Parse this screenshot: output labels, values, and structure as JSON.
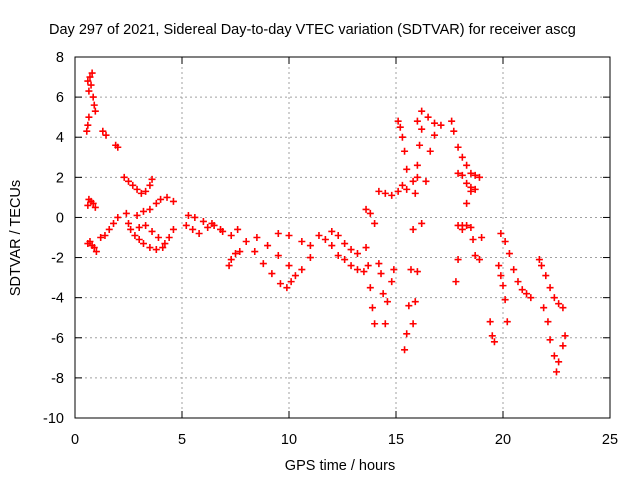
{
  "chart_data": {
    "type": "scatter",
    "title": "Day 297 of 2021, Sidereal Day-to-day VTEC variation (SDTVAR) for receiver ascg",
    "xlabel": "GPS time / hours",
    "ylabel": "SDTVAR / TECUs",
    "xlim": [
      0,
      25
    ],
    "ylim": [
      -10,
      8
    ],
    "xticks": [
      0,
      5,
      10,
      15,
      20,
      25
    ],
    "xtick_labels": [
      "0",
      "5",
      "10",
      "15",
      "20",
      "25"
    ],
    "yticks": [
      -10,
      -8,
      -6,
      -4,
      -2,
      0,
      2,
      4,
      6,
      8
    ],
    "ytick_labels": [
      "-10",
      "-8",
      "-6",
      "-4",
      "-2",
      "0",
      "2",
      "4",
      "6",
      "8"
    ],
    "grid": true,
    "marker": "+",
    "color": "#ff0000",
    "series": [
      {
        "name": "SDTVAR",
        "points": [
          [
            0.55,
            4.3
          ],
          [
            0.6,
            4.6
          ],
          [
            0.65,
            5.0
          ],
          [
            0.6,
            6.8
          ],
          [
            0.65,
            6.3
          ],
          [
            0.7,
            7.0
          ],
          [
            0.75,
            6.6
          ],
          [
            0.8,
            7.2
          ],
          [
            0.85,
            6.0
          ],
          [
            0.9,
            5.6
          ],
          [
            0.95,
            5.3
          ],
          [
            0.6,
            0.6
          ],
          [
            0.65,
            0.9
          ],
          [
            0.75,
            0.8
          ],
          [
            0.85,
            0.7
          ],
          [
            0.95,
            0.5
          ],
          [
            0.6,
            -1.3
          ],
          [
            0.7,
            -1.2
          ],
          [
            0.8,
            -1.4
          ],
          [
            0.9,
            -1.5
          ],
          [
            1.0,
            -1.7
          ],
          [
            1.3,
            4.3
          ],
          [
            1.45,
            4.1
          ],
          [
            1.9,
            3.6
          ],
          [
            2.0,
            3.5
          ],
          [
            1.2,
            -1.0
          ],
          [
            1.4,
            -0.9
          ],
          [
            1.6,
            -0.6
          ],
          [
            1.8,
            -0.3
          ],
          [
            2.0,
            0.0
          ],
          [
            2.3,
            2.0
          ],
          [
            2.5,
            1.8
          ],
          [
            2.7,
            1.6
          ],
          [
            2.9,
            1.4
          ],
          [
            3.1,
            1.2
          ],
          [
            3.3,
            1.3
          ],
          [
            3.5,
            1.6
          ],
          [
            3.6,
            1.9
          ],
          [
            2.4,
            0.2
          ],
          [
            2.5,
            -0.3
          ],
          [
            2.6,
            -0.6
          ],
          [
            2.8,
            -0.9
          ],
          [
            3.0,
            -1.1
          ],
          [
            3.2,
            -1.3
          ],
          [
            3.5,
            -1.5
          ],
          [
            3.8,
            -1.6
          ],
          [
            4.1,
            -1.5
          ],
          [
            4.4,
            -1.0
          ],
          [
            4.6,
            -0.6
          ],
          [
            2.9,
            0.1
          ],
          [
            3.2,
            0.3
          ],
          [
            3.5,
            0.4
          ],
          [
            3.8,
            0.7
          ],
          [
            4.0,
            0.9
          ],
          [
            4.3,
            1.0
          ],
          [
            4.6,
            0.8
          ],
          [
            3.0,
            -0.5
          ],
          [
            3.3,
            -0.4
          ],
          [
            3.6,
            -0.7
          ],
          [
            3.9,
            -1.0
          ],
          [
            4.2,
            -1.3
          ],
          [
            5.2,
            -0.4
          ],
          [
            5.5,
            -0.6
          ],
          [
            5.8,
            -0.8
          ],
          [
            6.2,
            -0.5
          ],
          [
            6.5,
            -0.4
          ],
          [
            6.9,
            -0.7
          ],
          [
            7.3,
            -0.9
          ],
          [
            7.6,
            -0.6
          ],
          [
            5.3,
            0.1
          ],
          [
            5.6,
            0.0
          ],
          [
            6.0,
            -0.2
          ],
          [
            6.4,
            -0.3
          ],
          [
            6.8,
            -0.6
          ],
          [
            7.3,
            -2.1
          ],
          [
            7.5,
            -1.8
          ],
          [
            7.7,
            -1.7
          ],
          [
            7.2,
            -2.4
          ],
          [
            8.0,
            -1.2
          ],
          [
            8.4,
            -1.7
          ],
          [
            8.8,
            -2.3
          ],
          [
            9.2,
            -2.8
          ],
          [
            9.6,
            -3.3
          ],
          [
            9.9,
            -3.5
          ],
          [
            10.1,
            -3.2
          ],
          [
            8.5,
            -1.0
          ],
          [
            9.0,
            -1.4
          ],
          [
            9.5,
            -1.9
          ],
          [
            10.0,
            -2.4
          ],
          [
            10.3,
            -2.9
          ],
          [
            10.6,
            -2.6
          ],
          [
            11.0,
            -2.0
          ],
          [
            9.5,
            -0.8
          ],
          [
            10.0,
            -0.9
          ],
          [
            10.6,
            -1.2
          ],
          [
            11.0,
            -1.4
          ],
          [
            11.4,
            -0.9
          ],
          [
            11.7,
            -1.1
          ],
          [
            12.0,
            -1.4
          ],
          [
            12.3,
            -1.9
          ],
          [
            12.6,
            -2.1
          ],
          [
            12.9,
            -2.4
          ],
          [
            13.2,
            -2.6
          ],
          [
            13.5,
            -2.7
          ],
          [
            12.0,
            -0.7
          ],
          [
            12.3,
            -0.9
          ],
          [
            12.6,
            -1.3
          ],
          [
            12.9,
            -1.6
          ],
          [
            13.2,
            -1.8
          ],
          [
            13.6,
            -1.5
          ],
          [
            13.7,
            -2.4
          ],
          [
            13.8,
            -3.5
          ],
          [
            13.9,
            -4.5
          ],
          [
            14.0,
            -5.3
          ],
          [
            13.6,
            0.4
          ],
          [
            13.8,
            0.2
          ],
          [
            14.0,
            -0.3
          ],
          [
            14.2,
            -2.3
          ],
          [
            14.3,
            -2.8
          ],
          [
            14.4,
            -3.8
          ],
          [
            14.5,
            -5.3
          ],
          [
            14.6,
            -4.2
          ],
          [
            14.8,
            -3.2
          ],
          [
            14.9,
            -2.6
          ],
          [
            14.2,
            1.3
          ],
          [
            14.5,
            1.2
          ],
          [
            14.8,
            1.1
          ],
          [
            15.1,
            1.3
          ],
          [
            15.3,
            1.6
          ],
          [
            15.5,
            1.4
          ],
          [
            15.8,
            1.8
          ],
          [
            16.0,
            2.0
          ],
          [
            15.1,
            4.8
          ],
          [
            15.2,
            4.5
          ],
          [
            15.3,
            4.0
          ],
          [
            15.4,
            3.3
          ],
          [
            15.5,
            2.4
          ],
          [
            15.4,
            -6.6
          ],
          [
            15.5,
            -5.8
          ],
          [
            15.6,
            -4.4
          ],
          [
            15.7,
            -2.6
          ],
          [
            15.8,
            -0.6
          ],
          [
            15.9,
            1.2
          ],
          [
            16.0,
            2.6
          ],
          [
            16.1,
            3.6
          ],
          [
            16.2,
            4.4
          ],
          [
            15.8,
            -5.3
          ],
          [
            15.9,
            -4.2
          ],
          [
            16.0,
            -2.7
          ],
          [
            16.2,
            -0.3
          ],
          [
            16.4,
            1.8
          ],
          [
            16.6,
            3.3
          ],
          [
            16.8,
            4.1
          ],
          [
            16.0,
            4.8
          ],
          [
            16.2,
            5.3
          ],
          [
            16.5,
            5.0
          ],
          [
            16.8,
            4.7
          ],
          [
            17.1,
            4.6
          ],
          [
            17.6,
            4.8
          ],
          [
            17.7,
            4.3
          ],
          [
            17.9,
            3.5
          ],
          [
            18.1,
            3.0
          ],
          [
            18.3,
            2.6
          ],
          [
            18.5,
            2.2
          ],
          [
            18.7,
            2.1
          ],
          [
            18.9,
            2.0
          ],
          [
            17.9,
            2.2
          ],
          [
            18.1,
            2.1
          ],
          [
            18.3,
            1.7
          ],
          [
            18.5,
            1.5
          ],
          [
            18.7,
            1.4
          ],
          [
            17.9,
            -0.4
          ],
          [
            18.1,
            -0.6
          ],
          [
            18.3,
            -0.4
          ],
          [
            18.5,
            -0.5
          ],
          [
            18.6,
            -1.1
          ],
          [
            18.7,
            -1.9
          ],
          [
            18.9,
            -2.1
          ],
          [
            19.0,
            -1.0
          ],
          [
            17.8,
            -3.2
          ],
          [
            17.9,
            -2.1
          ],
          [
            18.1,
            -0.4
          ],
          [
            18.3,
            0.7
          ],
          [
            18.5,
            1.3
          ],
          [
            19.4,
            -5.2
          ],
          [
            19.5,
            -5.9
          ],
          [
            19.6,
            -6.2
          ],
          [
            19.9,
            -0.8
          ],
          [
            20.1,
            -1.2
          ],
          [
            20.3,
            -1.8
          ],
          [
            20.5,
            -2.6
          ],
          [
            20.7,
            -3.2
          ],
          [
            20.9,
            -3.6
          ],
          [
            21.1,
            -3.8
          ],
          [
            21.3,
            -4.0
          ],
          [
            19.8,
            -2.4
          ],
          [
            19.9,
            -2.9
          ],
          [
            20.0,
            -3.4
          ],
          [
            20.1,
            -4.1
          ],
          [
            20.2,
            -5.2
          ],
          [
            21.7,
            -2.1
          ],
          [
            21.8,
            -2.4
          ],
          [
            22.0,
            -2.9
          ],
          [
            22.2,
            -3.5
          ],
          [
            22.4,
            -4.0
          ],
          [
            22.6,
            -4.3
          ],
          [
            22.8,
            -4.5
          ],
          [
            21.9,
            -4.5
          ],
          [
            22.1,
            -5.2
          ],
          [
            22.2,
            -6.1
          ],
          [
            22.4,
            -6.9
          ],
          [
            22.5,
            -7.7
          ],
          [
            22.6,
            -7.2
          ],
          [
            22.8,
            -6.4
          ],
          [
            22.9,
            -5.9
          ]
        ]
      }
    ]
  }
}
